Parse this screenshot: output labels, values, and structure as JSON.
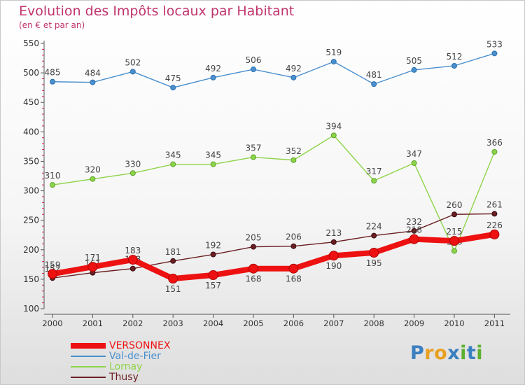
{
  "chart_data": {
    "type": "line",
    "title": "Evolution des Impôts locaux par Habitant",
    "subtitle": "(en € et par an)",
    "x": [
      "2000",
      "2001",
      "2002",
      "2003",
      "2004",
      "2005",
      "2006",
      "2007",
      "2008",
      "2009",
      "2010",
      "2011"
    ],
    "ylim": [
      100,
      550
    ],
    "yticks": [
      100,
      150,
      200,
      250,
      300,
      350,
      400,
      450,
      500,
      550
    ],
    "grid": false,
    "legend_position": "bottom-left",
    "series": [
      {
        "name": "Val-de-Fier",
        "color": "#4a8fce",
        "values": [
          485,
          484,
          502,
          475,
          492,
          506,
          492,
          519,
          481,
          505,
          512,
          533
        ]
      },
      {
        "name": "Lornay",
        "color": "#8ed44a",
        "values": [
          310,
          320,
          330,
          345,
          345,
          357,
          352,
          394,
          317,
          347,
          198,
          366
        ]
      },
      {
        "name": "Thusy",
        "color": "#6b1e22",
        "values": [
          152,
          161,
          168,
          181,
          192,
          205,
          206,
          213,
          224,
          232,
          260,
          261
        ]
      },
      {
        "name": "VERSONNEX",
        "color": "#ee1111",
        "values": [
          159,
          171,
          183,
          151,
          157,
          168,
          168,
          190,
          195,
          218,
          215,
          226
        ]
      }
    ],
    "legend": [
      {
        "name": "VERSONNEX",
        "color": "#ee1111"
      },
      {
        "name": "Val-de-Fier",
        "color": "#4a8fce"
      },
      {
        "name": "Lornay",
        "color": "#8ed44a"
      },
      {
        "name": "Thusy",
        "color": "#6b1e22"
      }
    ]
  },
  "logo": {
    "text": "Proxiti",
    "letters": [
      "P",
      "r",
      "o",
      "x",
      "i",
      "t",
      "i"
    ],
    "colors": [
      "#3a7fc0",
      "#e8a020",
      "#e8a020",
      "#3a7fc0",
      "#5cb030",
      "#3a7fc0",
      "#5cb030"
    ]
  }
}
